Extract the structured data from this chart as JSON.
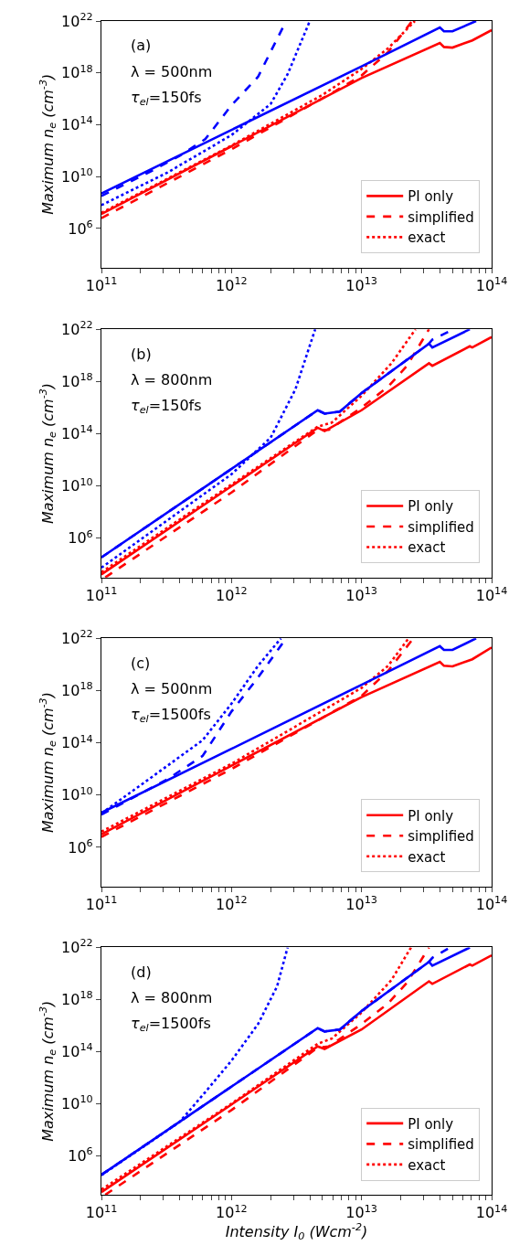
{
  "chart_data": [
    {
      "type": "line",
      "log": "xy",
      "legend": "bottom right",
      "xlim": [
        100000000000.0,
        100000000000000.0
      ],
      "ylim": [
        1000.0,
        1e+22
      ],
      "xticks": [
        {
          "value": 100000000000.0,
          "label": "10$^{11}$"
        },
        {
          "value": 200000000000.0,
          "label": null
        },
        {
          "value": 300000000000.0,
          "label": null
        },
        {
          "value": 400000000000.0,
          "label": null
        },
        {
          "value": 500000000000.0,
          "label": null
        },
        {
          "value": 600000000000.0,
          "label": null
        },
        {
          "value": 700000000000.0,
          "label": null
        },
        {
          "value": 800000000000.0,
          "label": null
        },
        {
          "value": 900000000000.0,
          "label": null
        },
        {
          "value": 1000000000000.0,
          "label": "10$^{12}$"
        },
        {
          "value": 2000000000000.0,
          "label": null
        },
        {
          "value": 3000000000000.0,
          "label": null
        },
        {
          "value": 4000000000000.0,
          "label": null
        },
        {
          "value": 5000000000000.0,
          "label": null
        },
        {
          "value": 6000000000000.0,
          "label": null
        },
        {
          "value": 7000000000000.0,
          "label": null
        },
        {
          "value": 8000000000000.0,
          "label": null
        },
        {
          "value": 9000000000000.0,
          "label": null
        },
        {
          "value": 10000000000000.0,
          "label": "10$^{13}$"
        },
        {
          "value": 20000000000000.0,
          "label": null
        },
        {
          "value": 30000000000000.0,
          "label": null
        },
        {
          "value": 40000000000000.0,
          "label": null
        },
        {
          "value": 50000000000000.0,
          "label": null
        },
        {
          "value": 60000000000000.0,
          "label": null
        },
        {
          "value": 70000000000000.0,
          "label": null
        },
        {
          "value": 80000000000000.0,
          "label": null
        },
        {
          "value": 90000000000000.0,
          "label": null
        },
        {
          "value": 100000000000000.0,
          "label": "10$^{14}$"
        }
      ],
      "yticks": [
        {
          "value": 1000000.0,
          "label": "10$^{6}$"
        },
        {
          "value": 10000000000.0,
          "label": "10$^{10}$"
        },
        {
          "value": 100000000000000.0,
          "label": "10$^{14}$"
        },
        {
          "value": 1e+18,
          "label": "10$^{18}$"
        },
        {
          "value": 1e+22,
          "label": "10$^{22}$"
        }
      ],
      "ylabel": "Maximum n$_{e}$ (cm$^{-3}$)",
      "annotations": [
        "(a)",
        "λ = 500nm",
        "τ$_{el}$=150fs"
      ],
      "series": [
        {
          "name": "PI only",
          "color": "#ff0000",
          "line_style": "solid",
          "x": [
            100000000000.0,
            1000000000000.0,
            10000000000000.0,
            40000000000000.0,
            43000000000000.0,
            50000000000000.0,
            71000000000000.0,
            100000000000000.0
          ],
          "values": [
            13000000.0,
            2200000000000.0,
            4e+17,
            2e+20,
            1e+20,
            8.9e+19,
            3.2e+20,
            2e+21
          ]
        },
        {
          "name": "simplified",
          "color": "#ff0000",
          "line_style": "dashed",
          "x": [
            100000000000.0,
            1000000000000.0,
            6300000000000.0,
            10000000000000.0,
            16000000000000.0,
            24500000000000.0
          ],
          "values": [
            6300000.0,
            1300000000000.0,
            4e+16,
            6.3e+17,
            4e+19,
            1e+22
          ]
        },
        {
          "name": "exact",
          "color": "#ff0000",
          "line_style": "dotted",
          "x": [
            100000000000.0,
            1000000000000.0,
            5000000000000.0,
            10000000000000.0,
            16000000000000.0,
            25700000000000.0
          ],
          "values": [
            16000000.0,
            2500000000000.0,
            2e+16,
            2e+18,
            7.9e+19,
            1e+22
          ]
        },
        {
          "color": "#0000ff",
          "line_style": "solid",
          "x": [
            100000000000.0,
            1000000000000.0,
            10000000000000.0,
            40000000000000.0,
            43000000000000.0,
            50000000000000.0,
            76000000000000.0
          ],
          "values": [
            500000000.0,
            40000000000000.0,
            3.2e+18,
            3.2e+21,
            1.6e+21,
            1.6e+21,
            1e+22
          ]
        },
        {
          "color": "#0000ff",
          "line_style": "dashed",
          "x": [
            100000000000.0,
            250000000000.0,
            400000000000.0,
            630000000000.0,
            1000000000000.0,
            1600000000000.0,
            2630000000000.0
          ],
          "values": [
            320000000.0,
            32000000000.0,
            400000000000.0,
            7900000000000.0,
            3200000000000000.0,
            5e+17,
            1e+22
          ]
        },
        {
          "color": "#0000ff",
          "line_style": "dotted",
          "x": [
            100000000000.0,
            320000000000.0,
            1000000000000.0,
            2000000000000.0,
            2700000000000.0,
            4000000000000.0
          ],
          "values": [
            63000000.0,
            20000000000.0,
            16000000000000.0,
            4000000000000000.0,
            7.9e+17,
            1e+22
          ]
        }
      ]
    },
    {
      "type": "line",
      "log": "xy",
      "legend": "bottom right",
      "xlim": [
        100000000000.0,
        100000000000000.0
      ],
      "ylim": [
        1000.0,
        1e+22
      ],
      "xticks": [
        {
          "value": 100000000000.0,
          "label": "10$^{11}$"
        },
        {
          "value": 200000000000.0,
          "label": null
        },
        {
          "value": 300000000000.0,
          "label": null
        },
        {
          "value": 400000000000.0,
          "label": null
        },
        {
          "value": 500000000000.0,
          "label": null
        },
        {
          "value": 600000000000.0,
          "label": null
        },
        {
          "value": 700000000000.0,
          "label": null
        },
        {
          "value": 800000000000.0,
          "label": null
        },
        {
          "value": 900000000000.0,
          "label": null
        },
        {
          "value": 1000000000000.0,
          "label": "10$^{12}$"
        },
        {
          "value": 2000000000000.0,
          "label": null
        },
        {
          "value": 3000000000000.0,
          "label": null
        },
        {
          "value": 4000000000000.0,
          "label": null
        },
        {
          "value": 5000000000000.0,
          "label": null
        },
        {
          "value": 6000000000000.0,
          "label": null
        },
        {
          "value": 7000000000000.0,
          "label": null
        },
        {
          "value": 8000000000000.0,
          "label": null
        },
        {
          "value": 9000000000000.0,
          "label": null
        },
        {
          "value": 10000000000000.0,
          "label": "10$^{13}$"
        },
        {
          "value": 20000000000000.0,
          "label": null
        },
        {
          "value": 30000000000000.0,
          "label": null
        },
        {
          "value": 40000000000000.0,
          "label": null
        },
        {
          "value": 50000000000000.0,
          "label": null
        },
        {
          "value": 60000000000000.0,
          "label": null
        },
        {
          "value": 70000000000000.0,
          "label": null
        },
        {
          "value": 80000000000000.0,
          "label": null
        },
        {
          "value": 90000000000000.0,
          "label": null
        },
        {
          "value": 100000000000000.0,
          "label": "10$^{14}$"
        }
      ],
      "yticks": [
        {
          "value": 1000000.0,
          "label": "10$^{6}$"
        },
        {
          "value": 10000000000.0,
          "label": "10$^{10}$"
        },
        {
          "value": 100000000000000.0,
          "label": "10$^{14}$"
        },
        {
          "value": 1e+18,
          "label": "10$^{18}$"
        },
        {
          "value": 1e+22,
          "label": "10$^{22}$"
        }
      ],
      "ylabel": "Maximum n$_{e}$ (cm$^{-3}$)",
      "annotations": [
        "(b)",
        "λ = 800nm",
        "τ$_{el}$=150fs"
      ],
      "series": [
        {
          "name": "PI only",
          "color": "#ff0000",
          "line_style": "solid",
          "x": [
            100000000000.0,
            4600000000000.0,
            5200000000000.0,
            10000000000000.0,
            33000000000000.0,
            35000000000000.0,
            68000000000000.0,
            71000000000000.0,
            100000000000000.0
          ],
          "values": [
            1700.0,
            290000000000000.0,
            160000000000000.0,
            6300000000000000.0,
            2.5e+19,
            1.6e+19,
            5e+20,
            4e+20,
            2.5e+21
          ]
        },
        {
          "name": "simplified",
          "color": "#ff0000",
          "line_style": "dashed",
          "x": [
            107000000000.0,
            1000000000000.0,
            4600000000000.0,
            5600000000000.0,
            10000000000000.0,
            16000000000000.0,
            22400000000000.0,
            33000000000000.0
          ],
          "values": [
            1000.0,
            3200000000.0,
            200000000000000.0,
            200000000000000.0,
            1e+16,
            4e+17,
            1.6e+19,
            1e+22
          ]
        },
        {
          "name": "exact",
          "color": "#ff0000",
          "line_style": "dotted",
          "x": [
            100000000000.0,
            1000000000000.0,
            4600000000000.0,
            5900000000000.0,
            10000000000000.0,
            17000000000000.0,
            26000000000000.0
          ],
          "values": [
            2500.0,
            13000000000.0,
            350000000000000.0,
            710000000000000.0,
            7.9e+16,
            2.5e+19,
            1e+22
          ]
        },
        {
          "color": "#0000ff",
          "line_style": "solid",
          "x": [
            100000000000.0,
            4600000000000.0,
            5200000000000.0,
            6800000000000.0,
            10000000000000.0,
            33000000000000.0,
            35000000000000.0,
            68000000000000.0
          ],
          "values": [
            34000.0,
            6300000000000000.0,
            3500000000000000.0,
            5000000000000000.0,
            1.3e+17,
            7.9e+20,
            4e+20,
            1e+22
          ]
        },
        {
          "color": "#0000ff",
          "line_style": "dashed",
          "x": [
            100000000000.0,
            4600000000000.0,
            5200000000000.0,
            6800000000000.0,
            10000000000000.0,
            33000000000000.0,
            35000000000000.0,
            51000000000000.0
          ],
          "values": [
            34000.0,
            6300000000000000.0,
            3500000000000000.0,
            5000000000000000.0,
            1.3e+17,
            7.9e+20,
            1.6e+21,
            1e+22
          ]
        },
        {
          "color": "#0000ff",
          "line_style": "dotted",
          "x": [
            100000000000.0,
            1000000000000.0,
            2000000000000.0,
            3100000000000.0,
            4400000000000.0
          ],
          "values": [
            5600.0,
            79000000000.0,
            50000000000000.0,
            2.5e+17,
            1e+22
          ]
        }
      ]
    },
    {
      "type": "line",
      "log": "xy",
      "legend": "bottom right",
      "xlim": [
        100000000000.0,
        100000000000000.0
      ],
      "ylim": [
        1000.0,
        1e+22
      ],
      "xticks": [
        {
          "value": 100000000000.0,
          "label": "10$^{11}$"
        },
        {
          "value": 200000000000.0,
          "label": null
        },
        {
          "value": 300000000000.0,
          "label": null
        },
        {
          "value": 400000000000.0,
          "label": null
        },
        {
          "value": 500000000000.0,
          "label": null
        },
        {
          "value": 600000000000.0,
          "label": null
        },
        {
          "value": 700000000000.0,
          "label": null
        },
        {
          "value": 800000000000.0,
          "label": null
        },
        {
          "value": 900000000000.0,
          "label": null
        },
        {
          "value": 1000000000000.0,
          "label": "10$^{12}$"
        },
        {
          "value": 2000000000000.0,
          "label": null
        },
        {
          "value": 3000000000000.0,
          "label": null
        },
        {
          "value": 4000000000000.0,
          "label": null
        },
        {
          "value": 5000000000000.0,
          "label": null
        },
        {
          "value": 6000000000000.0,
          "label": null
        },
        {
          "value": 7000000000000.0,
          "label": null
        },
        {
          "value": 8000000000000.0,
          "label": null
        },
        {
          "value": 9000000000000.0,
          "label": null
        },
        {
          "value": 10000000000000.0,
          "label": "10$^{13}$"
        },
        {
          "value": 20000000000000.0,
          "label": null
        },
        {
          "value": 30000000000000.0,
          "label": null
        },
        {
          "value": 40000000000000.0,
          "label": null
        },
        {
          "value": 50000000000000.0,
          "label": null
        },
        {
          "value": 60000000000000.0,
          "label": null
        },
        {
          "value": 70000000000000.0,
          "label": null
        },
        {
          "value": 80000000000000.0,
          "label": null
        },
        {
          "value": 90000000000000.0,
          "label": null
        },
        {
          "value": 100000000000000.0,
          "label": "10$^{14}$"
        }
      ],
      "yticks": [
        {
          "value": 1000000.0,
          "label": "10$^{6}$"
        },
        {
          "value": 10000000000.0,
          "label": "10$^{10}$"
        },
        {
          "value": 100000000000000.0,
          "label": "10$^{14}$"
        },
        {
          "value": 1e+18,
          "label": "10$^{18}$"
        },
        {
          "value": 1e+22,
          "label": "10$^{22}$"
        }
      ],
      "ylabel": "Maximum n$_{e}$ (cm$^{-3}$)",
      "annotations": [
        "(c)",
        "λ = 500nm",
        "τ$_{el}$=1500fs"
      ],
      "series": [
        {
          "name": "PI only",
          "color": "#ff0000",
          "line_style": "solid",
          "x": [
            100000000000.0,
            1000000000000.0,
            10000000000000.0,
            40000000000000.0,
            43000000000000.0,
            50000000000000.0,
            71000000000000.0,
            100000000000000.0
          ],
          "values": [
            10000000.0,
            1800000000000.0,
            3.2e+17,
            1.6e+20,
            7.9e+19,
            7.1e+19,
            2.5e+20,
            2e+21
          ]
        },
        {
          "name": "simplified",
          "color": "#ff0000",
          "line_style": "dashed",
          "x": [
            100000000000.0,
            1000000000000.0,
            10000000000000.0,
            16000000000000.0,
            25000000000000.0
          ],
          "values": [
            6300000.0,
            1000000000000.0,
            4e+17,
            3.2e+19,
            1e+22
          ]
        },
        {
          "name": "exact",
          "color": "#ff0000",
          "line_style": "dotted",
          "x": [
            100000000000.0,
            1000000000000.0,
            10000000000000.0,
            16000000000000.0,
            23000000000000.0
          ],
          "values": [
            16000000.0,
            2500000000000.0,
            1.6e+18,
            7.9e+19,
            1e+22
          ]
        },
        {
          "color": "#0000ff",
          "line_style": "solid",
          "x": [
            100000000000.0,
            1000000000000.0,
            10000000000000.0,
            40000000000000.0,
            43000000000000.0,
            50000000000000.0,
            76000000000000.0
          ],
          "values": [
            450000000.0,
            35000000000000.0,
            2.8e+18,
            2.5e+21,
            1.3e+21,
            1.3e+21,
            1e+22
          ]
        },
        {
          "color": "#0000ff",
          "line_style": "dashed",
          "x": [
            100000000000.0,
            320000000000.0,
            600000000000.0,
            1000000000000.0,
            1600000000000.0,
            2630000000000.0
          ],
          "values": [
            320000000.0,
            160000000000.0,
            10000000000000.0,
            2.5e+16,
            1e+19,
            1e+22
          ]
        },
        {
          "color": "#0000ff",
          "line_style": "dotted",
          "x": [
            100000000000.0,
            224000000000.0,
            600000000000.0,
            1000000000000.0,
            1600000000000.0,
            2400000000000.0
          ],
          "values": [
            400000000.0,
            130000000000.0,
            160000000000000.0,
            1e+17,
            7.9e+19,
            1e+22
          ]
        }
      ]
    },
    {
      "type": "line",
      "log": "xy",
      "legend": "bottom right",
      "xlim": [
        100000000000.0,
        100000000000000.0
      ],
      "ylim": [
        1000.0,
        1e+22
      ],
      "xticks": [
        {
          "value": 100000000000.0,
          "label": "10$^{11}$"
        },
        {
          "value": 200000000000.0,
          "label": null
        },
        {
          "value": 300000000000.0,
          "label": null
        },
        {
          "value": 400000000000.0,
          "label": null
        },
        {
          "value": 500000000000.0,
          "label": null
        },
        {
          "value": 600000000000.0,
          "label": null
        },
        {
          "value": 700000000000.0,
          "label": null
        },
        {
          "value": 800000000000.0,
          "label": null
        },
        {
          "value": 900000000000.0,
          "label": null
        },
        {
          "value": 1000000000000.0,
          "label": "10$^{12}$"
        },
        {
          "value": 2000000000000.0,
          "label": null
        },
        {
          "value": 3000000000000.0,
          "label": null
        },
        {
          "value": 4000000000000.0,
          "label": null
        },
        {
          "value": 5000000000000.0,
          "label": null
        },
        {
          "value": 6000000000000.0,
          "label": null
        },
        {
          "value": 7000000000000.0,
          "label": null
        },
        {
          "value": 8000000000000.0,
          "label": null
        },
        {
          "value": 9000000000000.0,
          "label": null
        },
        {
          "value": 10000000000000.0,
          "label": "10$^{13}$"
        },
        {
          "value": 20000000000000.0,
          "label": null
        },
        {
          "value": 30000000000000.0,
          "label": null
        },
        {
          "value": 40000000000000.0,
          "label": null
        },
        {
          "value": 50000000000000.0,
          "label": null
        },
        {
          "value": 60000000000000.0,
          "label": null
        },
        {
          "value": 70000000000000.0,
          "label": null
        },
        {
          "value": 80000000000000.0,
          "label": null
        },
        {
          "value": 90000000000000.0,
          "label": null
        },
        {
          "value": 100000000000000.0,
          "label": "10$^{14}$"
        }
      ],
      "yticks": [
        {
          "value": 1000000.0,
          "label": "10$^{6}$"
        },
        {
          "value": 10000000000.0,
          "label": "10$^{10}$"
        },
        {
          "value": 100000000000000.0,
          "label": "10$^{14}$"
        },
        {
          "value": 1e+18,
          "label": "10$^{18}$"
        },
        {
          "value": 1e+22,
          "label": "10$^{22}$"
        }
      ],
      "ylabel": "Maximum n$_{e}$ (cm$^{-3}$)",
      "xlabel": "Intensity I$_{0}$ (Wcm$^{-2}$)",
      "annotations": [
        "(d)",
        "λ = 800nm",
        "τ$_{el}$=1500fs"
      ],
      "series": [
        {
          "name": "PI only",
          "color": "#ff0000",
          "line_style": "solid",
          "x": [
            100000000000.0,
            4600000000000.0,
            5200000000000.0,
            10000000000000.0,
            33000000000000.0,
            35000000000000.0,
            68000000000000.0,
            71000000000000.0,
            100000000000000.0
          ],
          "values": [
            1600.0,
            250000000000000.0,
            160000000000000.0,
            5000000000000000.0,
            2.5e+19,
            1.6e+19,
            5e+20,
            4e+20,
            2.5e+21
          ]
        },
        {
          "name": "simplified",
          "color": "#ff0000",
          "line_style": "dashed",
          "x": [
            107000000000.0,
            1000000000000.0,
            4600000000000.0,
            5600000000000.0,
            10000000000000.0,
            16000000000000.0,
            22400000000000.0,
            33000000000000.0
          ],
          "values": [
            1000.0,
            3200000000.0,
            200000000000000.0,
            250000000000000.0,
            1.3e+16,
            5e+17,
            2e+19,
            1e+22
          ]
        },
        {
          "name": "exact",
          "color": "#ff0000",
          "line_style": "dotted",
          "x": [
            100000000000.0,
            1000000000000.0,
            4600000000000.0,
            5900000000000.0,
            10000000000000.0,
            17000000000000.0,
            24000000000000.0
          ],
          "values": [
            2500.0,
            10000000000.0,
            400000000000000.0,
            1000000000000000.0,
            1e+17,
            3.2e+19,
            1e+22
          ]
        },
        {
          "color": "#0000ff",
          "line_style": "solid",
          "x": [
            100000000000.0,
            4600000000000.0,
            5200000000000.0,
            6800000000000.0,
            10000000000000.0,
            33000000000000.0,
            35000000000000.0,
            68000000000000.0
          ],
          "values": [
            34000.0,
            6300000000000000.0,
            3500000000000000.0,
            5000000000000000.0,
            1.3e+17,
            7.9e+20,
            4e+20,
            1e+22
          ]
        },
        {
          "color": "#0000ff",
          "line_style": "dashed",
          "x": [
            100000000000.0,
            4600000000000.0,
            5200000000000.0,
            6800000000000.0,
            10000000000000.0,
            33000000000000.0,
            35000000000000.0,
            48000000000000.0
          ],
          "values": [
            34000.0,
            6300000000000000.0,
            3500000000000000.0,
            5000000000000000.0,
            1.3e+17,
            7.9e+20,
            1.6e+21,
            1e+22
          ]
        },
        {
          "color": "#0000ff",
          "line_style": "dotted",
          "x": [
            100000000000.0,
            250000000000.0,
            400000000000.0,
            630000000000.0,
            1000000000000.0,
            1600000000000.0,
            2240000000000.0,
            2700000000000.0
          ],
          "values": [
            32000.0,
            16000000.0,
            400000000.0,
            79000000000.0,
            20000000000000.0,
            1.3e+16,
            1e+19,
            1e+22
          ]
        }
      ]
    }
  ]
}
